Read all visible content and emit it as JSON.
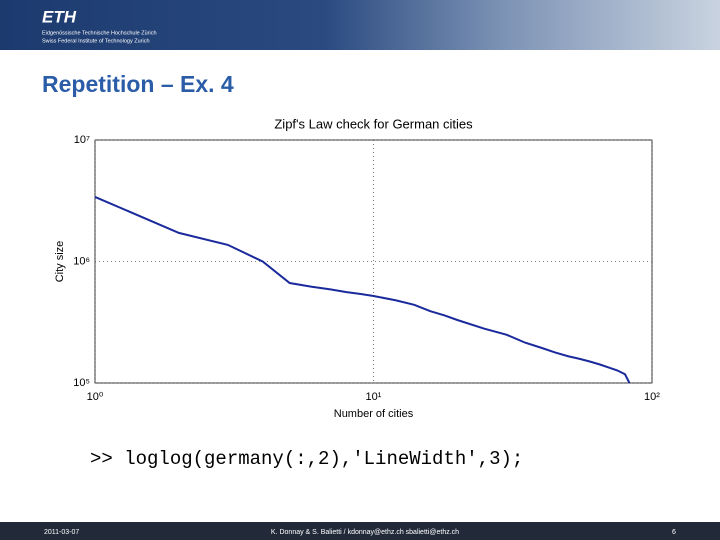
{
  "header": {
    "logo": "ETH",
    "line1": "Eidgenössische Technische Hochschule Zürich",
    "line2": "Swiss Federal Institute of Technology Zurich"
  },
  "slide_title": "Repetition – Ex. 4",
  "code": ">> loglog(germany(:,2),'LineWidth',3);",
  "footer": {
    "date": "2011-03-07",
    "authors": "K. Donnay & S. Balietti / kdonnay@ethz.ch sbalietti@ethz.ch",
    "page": "6"
  },
  "chart_data": {
    "type": "line",
    "title": "Zipf's Law check for German cities",
    "xlabel": "Number of cities",
    "ylabel": "City size",
    "xscale": "log",
    "yscale": "log",
    "grid": true,
    "xlim": [
      1,
      100
    ],
    "ylim": [
      100000,
      10000000
    ],
    "xticks": [
      {
        "value": 1,
        "label": "10⁰"
      },
      {
        "value": 10,
        "label": "10¹"
      },
      {
        "value": 100,
        "label": "10²"
      }
    ],
    "yticks": [
      {
        "value": 100000,
        "label": "10⁵"
      },
      {
        "value": 1000000,
        "label": "10⁶"
      },
      {
        "value": 10000000,
        "label": "10⁷"
      }
    ],
    "x": [
      1,
      2,
      3,
      4,
      5,
      6,
      7,
      8,
      9,
      10,
      12,
      14,
      16,
      18,
      20,
      25,
      30,
      35,
      40,
      45,
      50,
      55,
      60,
      65,
      70,
      75,
      80,
      83
    ],
    "series": [
      {
        "color": "#1a2a9c",
        "values": [
          3400000,
          1720000,
          1370000,
          1000000,
          665000,
          620000,
          590000,
          560000,
          540000,
          520000,
          480000,
          440000,
          390000,
          360000,
          330000,
          280000,
          250000,
          215000,
          195000,
          178000,
          166000,
          158000,
          150000,
          142000,
          134000,
          127000,
          118000,
          100000
        ]
      }
    ]
  }
}
